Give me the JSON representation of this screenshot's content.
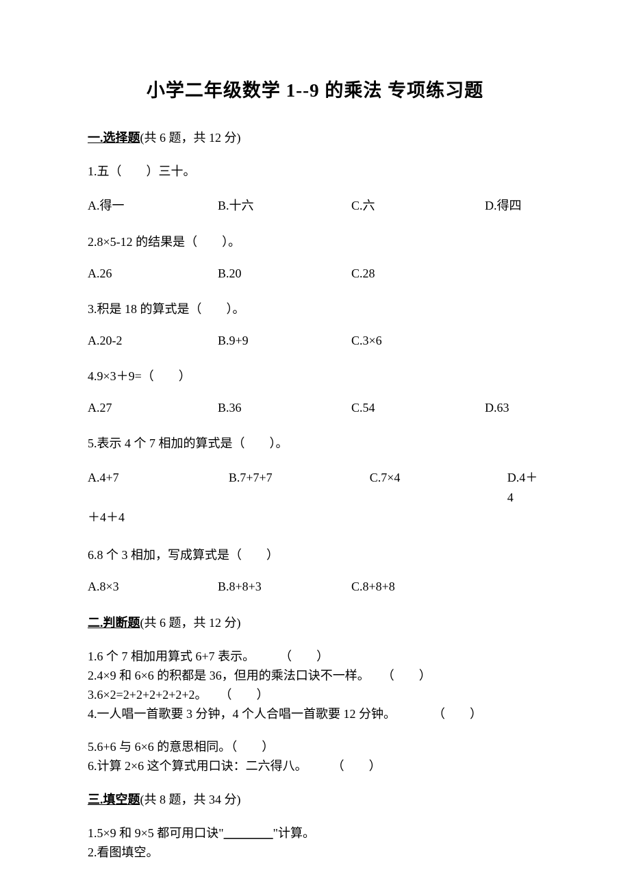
{
  "title": "小学二年级数学 1--9 的乘法 专项练习题",
  "section1": {
    "header_underline": "一.选择题",
    "header_rest": "(共 6 题，共 12 分)",
    "q1": {
      "text": "1.五（　　）三十。",
      "a": "A.得一",
      "b": "B.十六",
      "c": "C.六",
      "d": "D.得四"
    },
    "q2": {
      "text": "2.8×5-12 的结果是（　　）。",
      "a": "A.26",
      "b": "B.20",
      "c": "C.28"
    },
    "q3": {
      "text": "3.积是 18 的算式是（　　）。",
      "a": "A.20-2",
      "b": "B.9+9",
      "c": "C.3×6"
    },
    "q4": {
      "text": "4.9×3＋9=（　　）",
      "a": "A.27",
      "b": "B.36",
      "c": "C.54",
      "d": "D.63"
    },
    "q5": {
      "text": "5.表示 4 个 7 相加的算式是（　　）。",
      "a": "A.4+7",
      "b": "B.7+7+7",
      "c": "C.7×4",
      "d_part1": "D.4＋4",
      "d_part2": "＋4＋4"
    },
    "q6": {
      "text": "6.8 个 3 相加，写成算式是（　　）",
      "a": "A.8×3",
      "b": "B.8+8+3",
      "c": "C.8+8+8"
    }
  },
  "section2": {
    "header_underline": "二.判断题",
    "header_rest": "(共 6 题，共 12 分)",
    "items": {
      "j1": "1.6 个 7 相加用算式 6+7 表示。　　　（　　）",
      "j2": "2.4×9 和 6×6 的积都是 36，但用的乘法口诀不一样。　　（　　）",
      "j3": "3.6×2=2+2+2+2+2+2。　　（　　）",
      "j4": "4.一人唱一首歌要 3 分钟，4 个人合唱一首歌要 12 分钟。　　　　（　　）",
      "j5": "5.6+6 与 6×6 的意思相同。（　　）",
      "j6": "6.计算 2×6 这个算式用口诀：二六得八。　　　（　　）"
    }
  },
  "section3": {
    "header_underline": "三.填空题",
    "header_rest": "(共 8 题，共 34 分)",
    "items": {
      "f1_pre": "1.5×9 和 9×5 都可用口诀\"",
      "f1_blank": "________",
      "f1_post": "\"计算。",
      "f2": "2.看图填空。"
    }
  }
}
